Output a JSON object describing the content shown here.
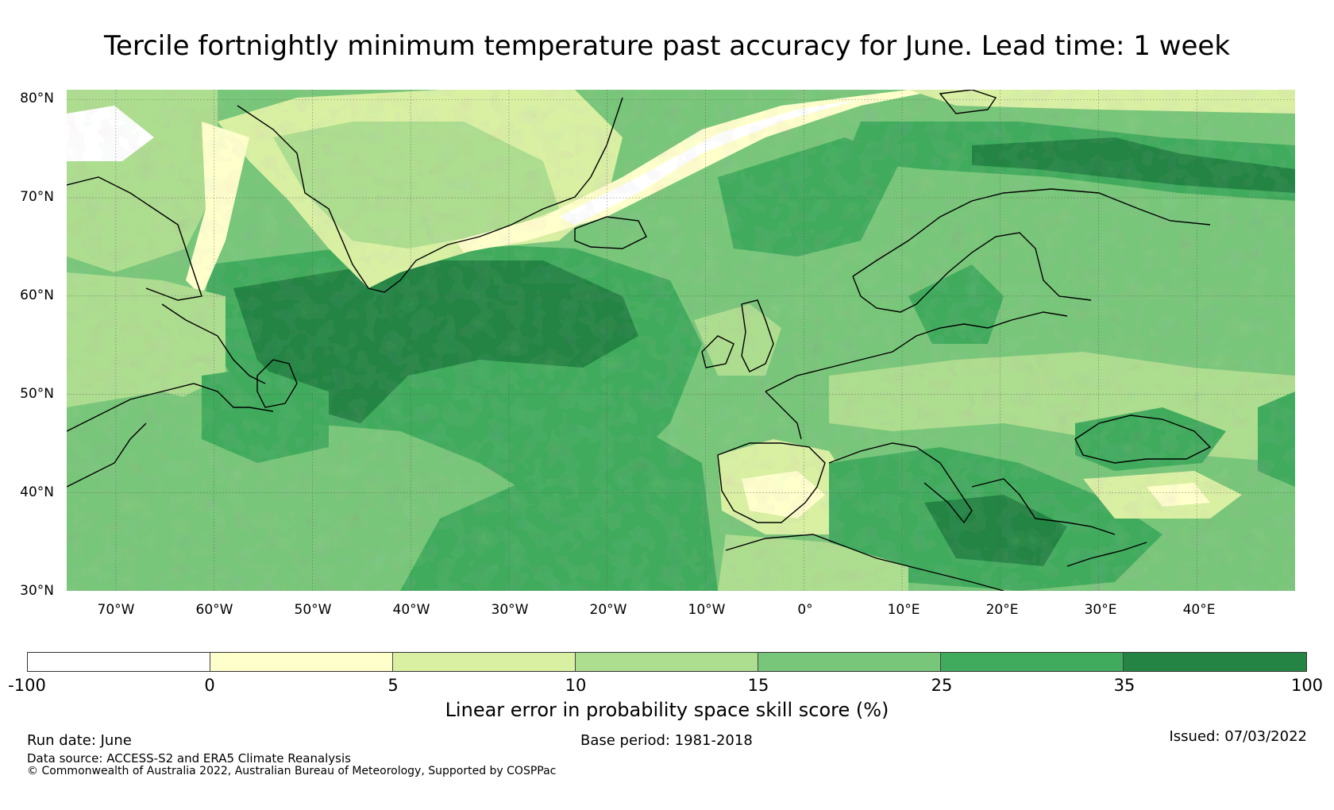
{
  "title": "Tercile fortnightly minimum temperature past accuracy for June. Lead time: 1 week",
  "map": {
    "lon_range": [
      -75,
      50
    ],
    "lat_range": [
      30,
      81
    ],
    "lat_labels": [
      "80°N",
      "70°N",
      "60°N",
      "50°N",
      "40°N",
      "30°N"
    ],
    "lat_values": [
      80,
      70,
      60,
      50,
      40,
      30
    ],
    "lon_labels": [
      "70°W",
      "60°W",
      "50°W",
      "40°W",
      "30°W",
      "20°W",
      "10°W",
      "0°",
      "10°E",
      "20°E",
      "30°E",
      "40°E"
    ],
    "lon_values": [
      -70,
      -60,
      -50,
      -40,
      -30,
      -20,
      -10,
      0,
      10,
      20,
      30,
      40
    ],
    "gridlines": true
  },
  "colorbar": {
    "ticks": [
      "-100",
      "0",
      "5",
      "10",
      "15",
      "25",
      "35",
      "100"
    ],
    "colors": [
      "#ffffff",
      "#ffffcc",
      "#d9f0a3",
      "#addd8e",
      "#78c679",
      "#41ab5d",
      "#238443"
    ],
    "label": "Linear error in probability space skill score (%)"
  },
  "footer": {
    "run_date": "Run date: June",
    "base_period": "Base period: 1981-2018",
    "issued": "Issued: 07/03/2022",
    "data_source": "Data source: ACCESS-S2 and ERA5 Climate Reanalysis",
    "copyright": "© Commonwealth of Australia 2022, Australian Bureau of Meteorology, Supported by COSPPac"
  }
}
